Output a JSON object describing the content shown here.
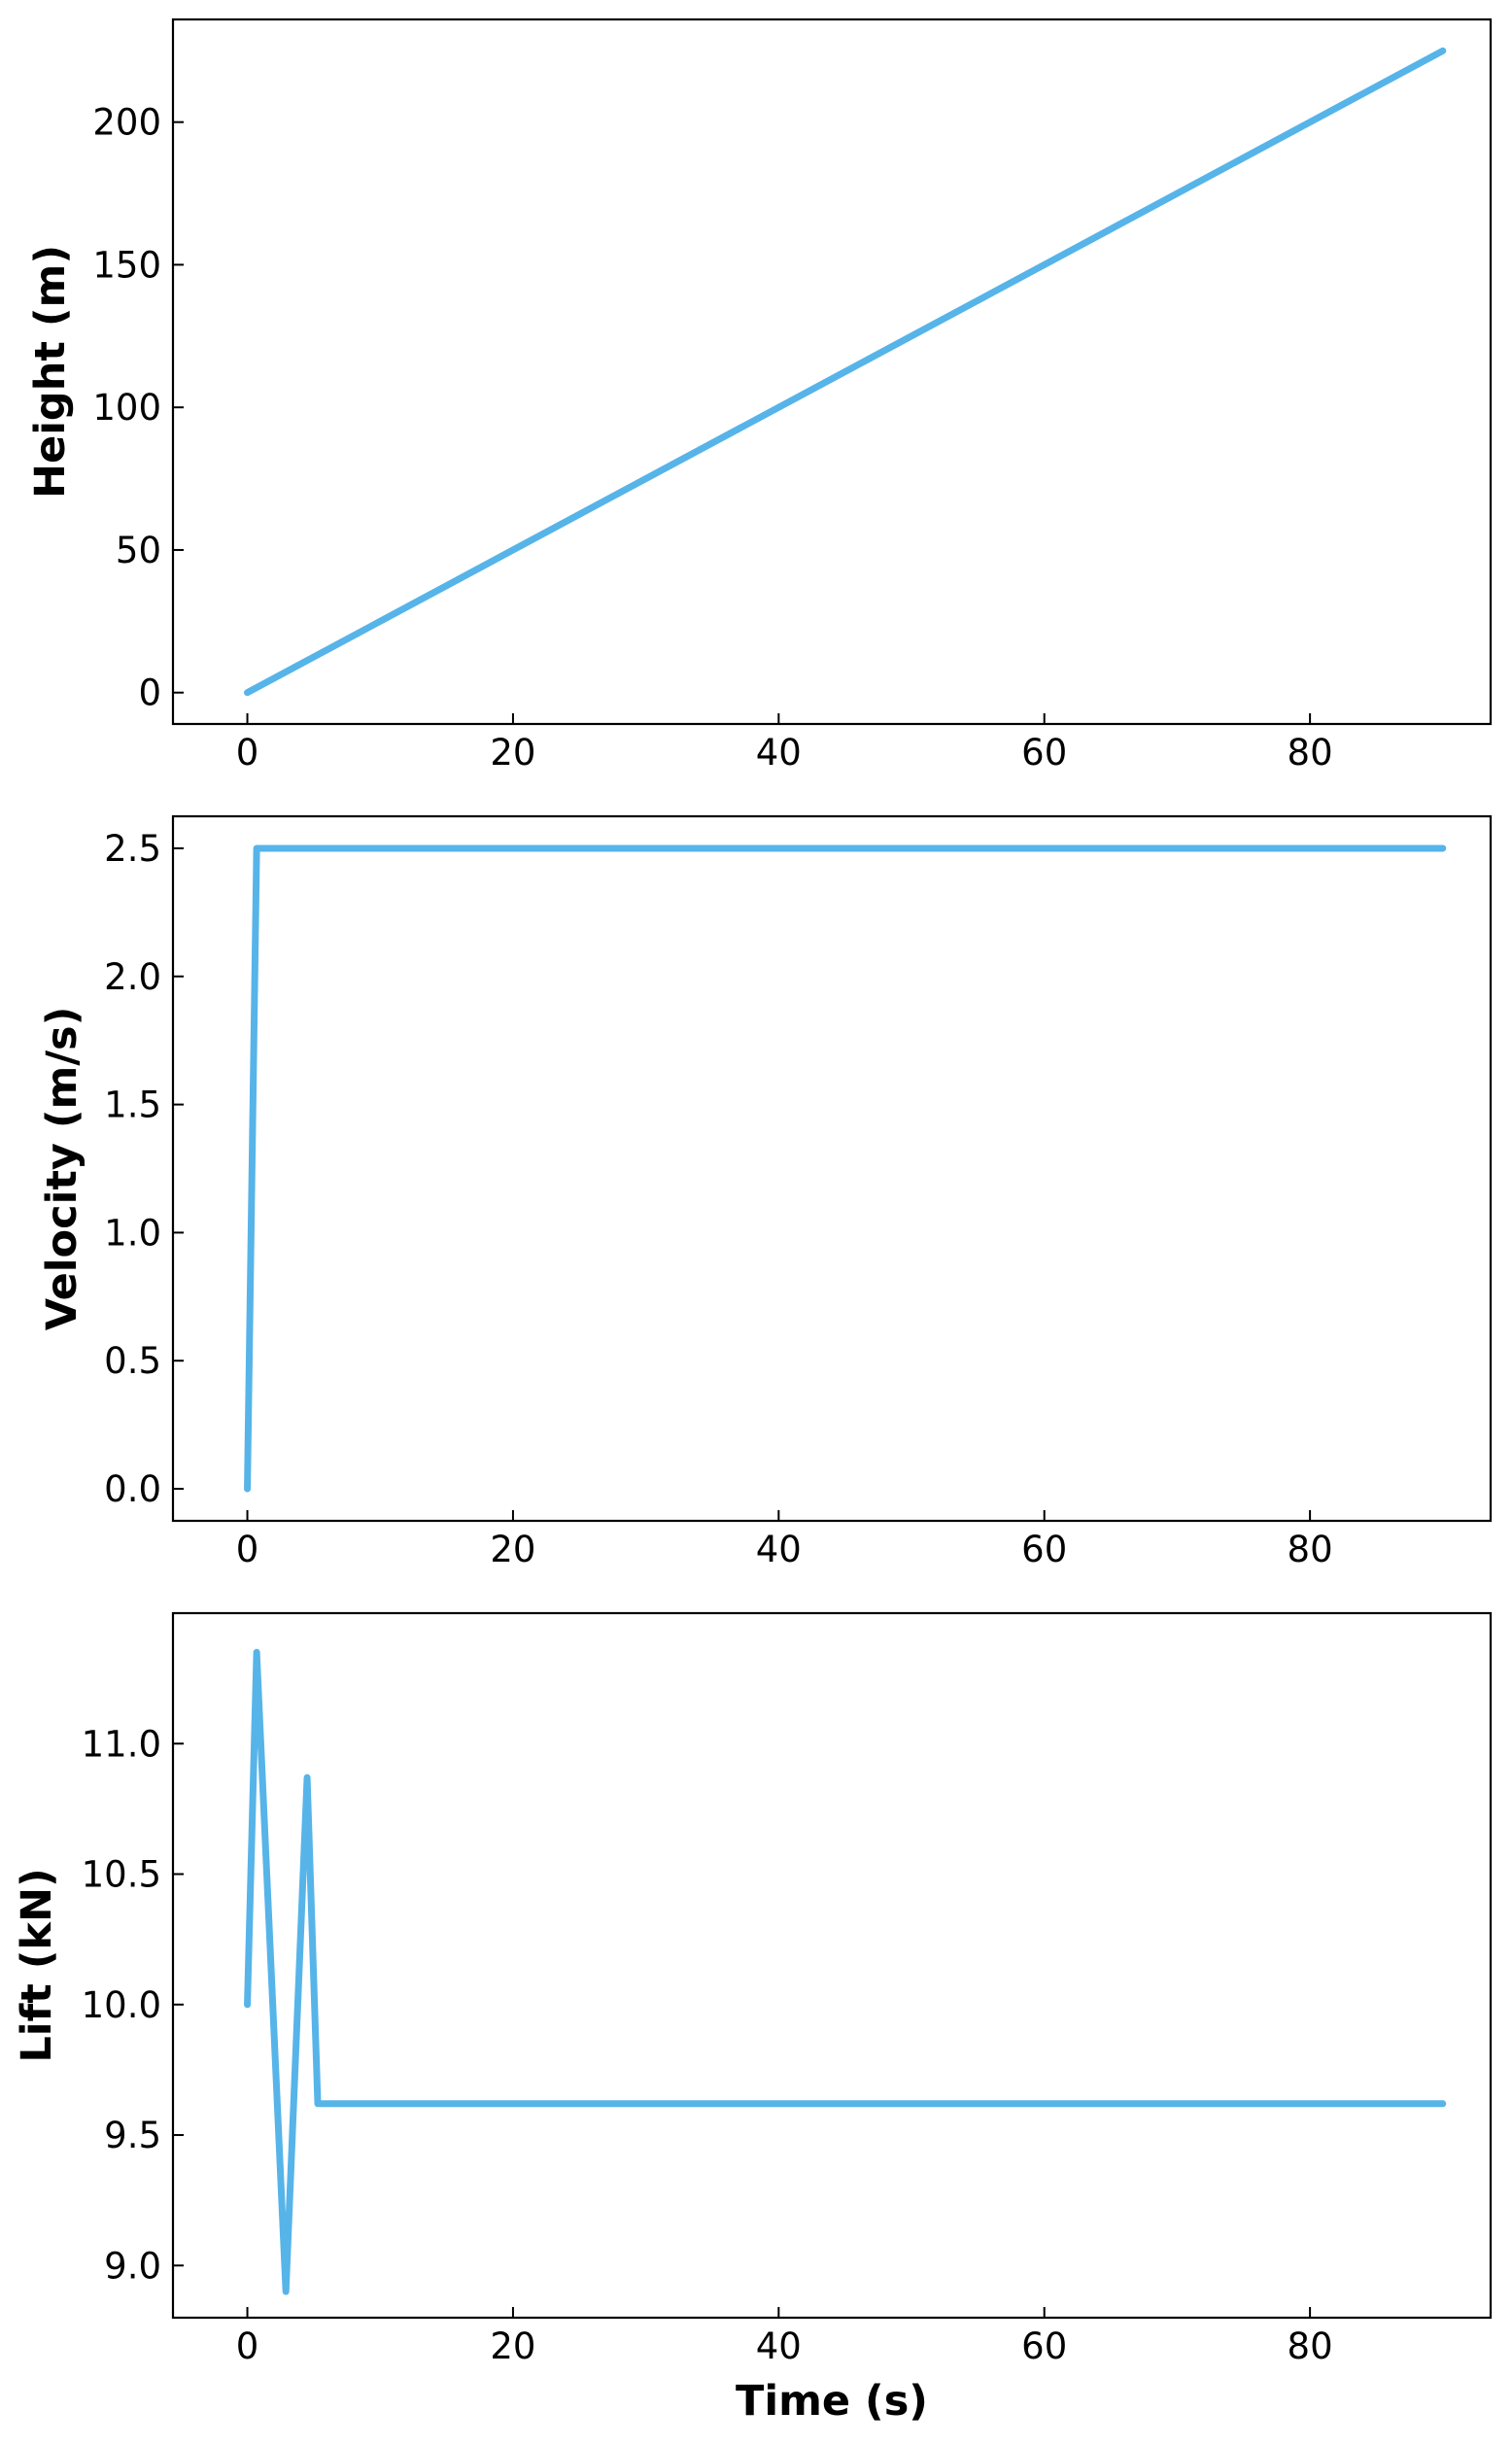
{
  "chart_data": [
    {
      "type": "line",
      "title": "",
      "xlabel": "",
      "ylabel": "Height (m)",
      "xlim": [
        -5.6,
        93.6
      ],
      "ylim": [
        -11,
        236
      ],
      "xticks": [
        0,
        20,
        40,
        60,
        80
      ],
      "xticklabels": [
        "0",
        "20",
        "40",
        "60",
        "80"
      ],
      "yticks": [
        0,
        50,
        100,
        150,
        200
      ],
      "yticklabels": [
        "0",
        "50",
        "100",
        "150",
        "200"
      ],
      "grid": false,
      "color": "#56b4e9",
      "series": [
        {
          "x": [
            0,
            90
          ],
          "y": [
            0,
            225
          ]
        }
      ]
    },
    {
      "type": "line",
      "title": "",
      "xlabel": "",
      "ylabel": "Velocity (m/s)",
      "xlim": [
        -5.6,
        93.6
      ],
      "ylim": [
        -0.125,
        2.625
      ],
      "xticks": [
        0,
        20,
        40,
        60,
        80
      ],
      "xticklabels": [
        "0",
        "20",
        "40",
        "60",
        "80"
      ],
      "yticks": [
        0.0,
        0.5,
        1.0,
        1.5,
        2.0,
        2.5
      ],
      "yticklabels": [
        "0.0",
        "0.5",
        "1.0",
        "1.5",
        "2.0",
        "2.5"
      ],
      "grid": false,
      "color": "#56b4e9",
      "series": [
        {
          "x": [
            0,
            0.7,
            90
          ],
          "y": [
            0,
            2.5,
            2.5
          ]
        }
      ]
    },
    {
      "type": "line",
      "title": "",
      "xlabel": "Time (s)",
      "ylabel": "Lift (kN)",
      "xlim": [
        -5.6,
        93.6
      ],
      "ylim": [
        8.8,
        11.5
      ],
      "xticks": [
        0,
        20,
        40,
        60,
        80
      ],
      "xticklabels": [
        "0",
        "20",
        "40",
        "60",
        "80"
      ],
      "yticks": [
        9.0,
        9.5,
        10.0,
        10.5,
        11.0
      ],
      "yticklabels": [
        "9.0",
        "9.5",
        "10.0",
        "10.5",
        "11.0"
      ],
      "grid": false,
      "color": "#56b4e9",
      "series": [
        {
          "x": [
            0,
            0.7,
            2.9,
            4.5,
            5.3,
            90
          ],
          "y": [
            10.0,
            11.35,
            8.9,
            10.87,
            9.62,
            9.62
          ]
        }
      ]
    }
  ]
}
